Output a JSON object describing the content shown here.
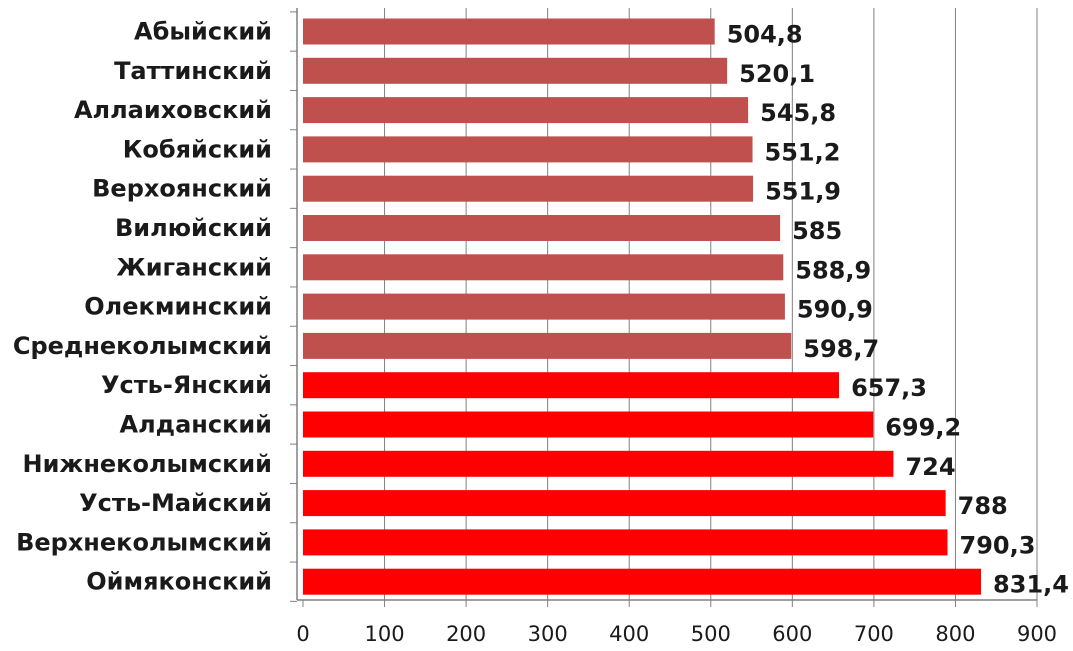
{
  "chart_data": {
    "type": "bar",
    "orientation": "horizontal",
    "categories": [
      "Абыйский",
      "Таттинский",
      "Аллаиховский",
      "Кобяйский",
      "Верхоянский",
      "Вилюйский",
      "Жиганский",
      "Олекминский",
      "Среднеколымский",
      "Усть-Янский",
      "Алданский",
      "Нижнеколымский",
      "Усть-Майский",
      "Верхнеколымский",
      "Оймяконский"
    ],
    "values": [
      504.8,
      520.1,
      545.8,
      551.2,
      551.9,
      585,
      588.9,
      590.9,
      598.7,
      657.3,
      699.2,
      724,
      788,
      790.3,
      831.4
    ],
    "value_labels": [
      "504,8",
      "520,1",
      "545,8",
      "551,2",
      "551,9",
      "585",
      "588,9",
      "590,9",
      "598,7",
      "657,3",
      "699,2",
      "724",
      "788",
      "790,3",
      "831,4"
    ],
    "bar_colors": [
      "#c0504d",
      "#c0504d",
      "#c0504d",
      "#c0504d",
      "#c0504d",
      "#c0504d",
      "#c0504d",
      "#c0504d",
      "#c0504d",
      "#ff0000",
      "#ff0000",
      "#ff0000",
      "#ff0000",
      "#ff0000",
      "#ff0000"
    ],
    "xlim": [
      0,
      900
    ],
    "x_ticks": [
      0,
      100,
      200,
      300,
      400,
      500,
      600,
      700,
      800,
      900
    ],
    "x_tick_labels": [
      "0",
      "100",
      "200",
      "300",
      "400",
      "500",
      "600",
      "700",
      "800",
      "900"
    ],
    "grid": "vertical",
    "grid_color": "#808080",
    "axis_color": "#808080",
    "legend": "none"
  }
}
